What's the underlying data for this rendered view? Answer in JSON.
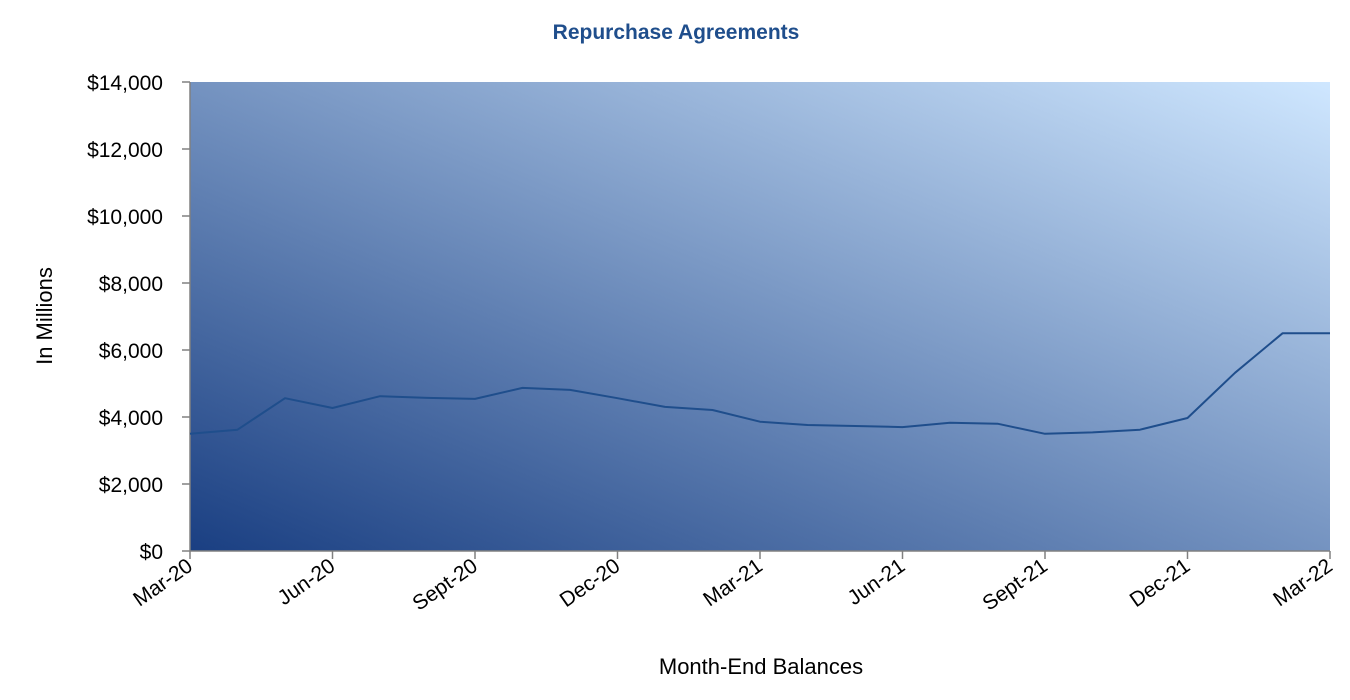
{
  "chart_data": {
    "type": "line",
    "title": "Repurchase Agreements",
    "xlabel": "Month-End Balances",
    "ylabel": "In Millions",
    "ylim": [
      0,
      14000
    ],
    "yticks": [
      0,
      2000,
      4000,
      6000,
      8000,
      10000,
      12000,
      14000
    ],
    "ytick_labels": [
      "$0",
      "$2,000",
      "$4,000",
      "$6,000",
      "$8,000",
      "$10,000",
      "$12,000",
      "$14,000"
    ],
    "xtick_labels": [
      "Mar-20",
      "Jun-20",
      "Sept-20",
      "Dec-20",
      "Mar-21",
      "Jun-21",
      "Sept-21",
      "Dec-21",
      "Mar-22"
    ],
    "x": [
      "Mar-20",
      "Apr-20",
      "May-20",
      "Jun-20",
      "Jul-20",
      "Aug-20",
      "Sept-20",
      "Oct-20",
      "Nov-20",
      "Dec-20",
      "Jan-21",
      "Feb-21",
      "Mar-21",
      "Apr-21",
      "May-21",
      "Jun-21",
      "Jul-21",
      "Aug-21",
      "Sept-21",
      "Oct-21",
      "Nov-21",
      "Dec-21",
      "Jan-22",
      "Feb-22",
      "Mar-22"
    ],
    "series": [
      {
        "values": [
          3500,
          3620,
          4560,
          4270,
          4620,
          4570,
          4540,
          4870,
          4810,
          4560,
          4300,
          4210,
          3860,
          3760,
          3730,
          3700,
          3830,
          3800,
          3500,
          3540,
          3620,
          3970,
          5320,
          6500,
          6500
        ]
      }
    ],
    "colors": {
      "line": "#1f4e8c",
      "title": "#1f4e8c",
      "plot_dark": "#1a3f82",
      "plot_light": "#cfe7ff"
    },
    "grid": false,
    "legend": "none"
  }
}
